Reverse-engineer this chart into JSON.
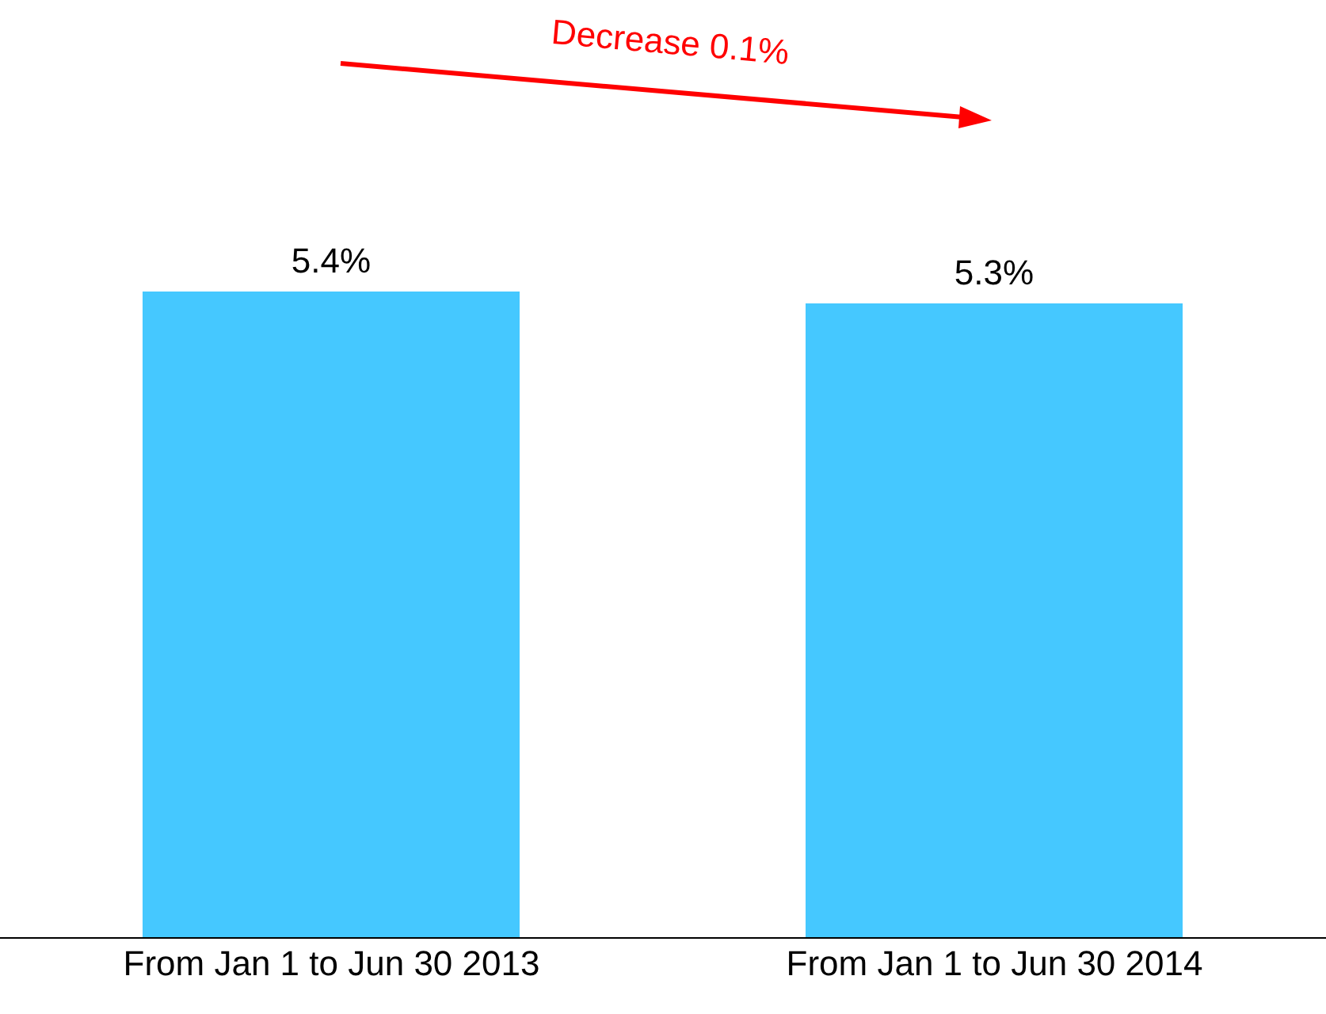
{
  "chart_data": {
    "type": "bar",
    "categories": [
      "From Jan 1 to Jun 30 2013",
      "From Jan 1 to Jun 30 2014"
    ],
    "values": [
      5.4,
      5.3
    ],
    "color": "#45c8ff",
    "value_labels": [
      "5.4%",
      "5.3%"
    ],
    "annotations": [
      "Decrease 0.1%"
    ]
  }
}
